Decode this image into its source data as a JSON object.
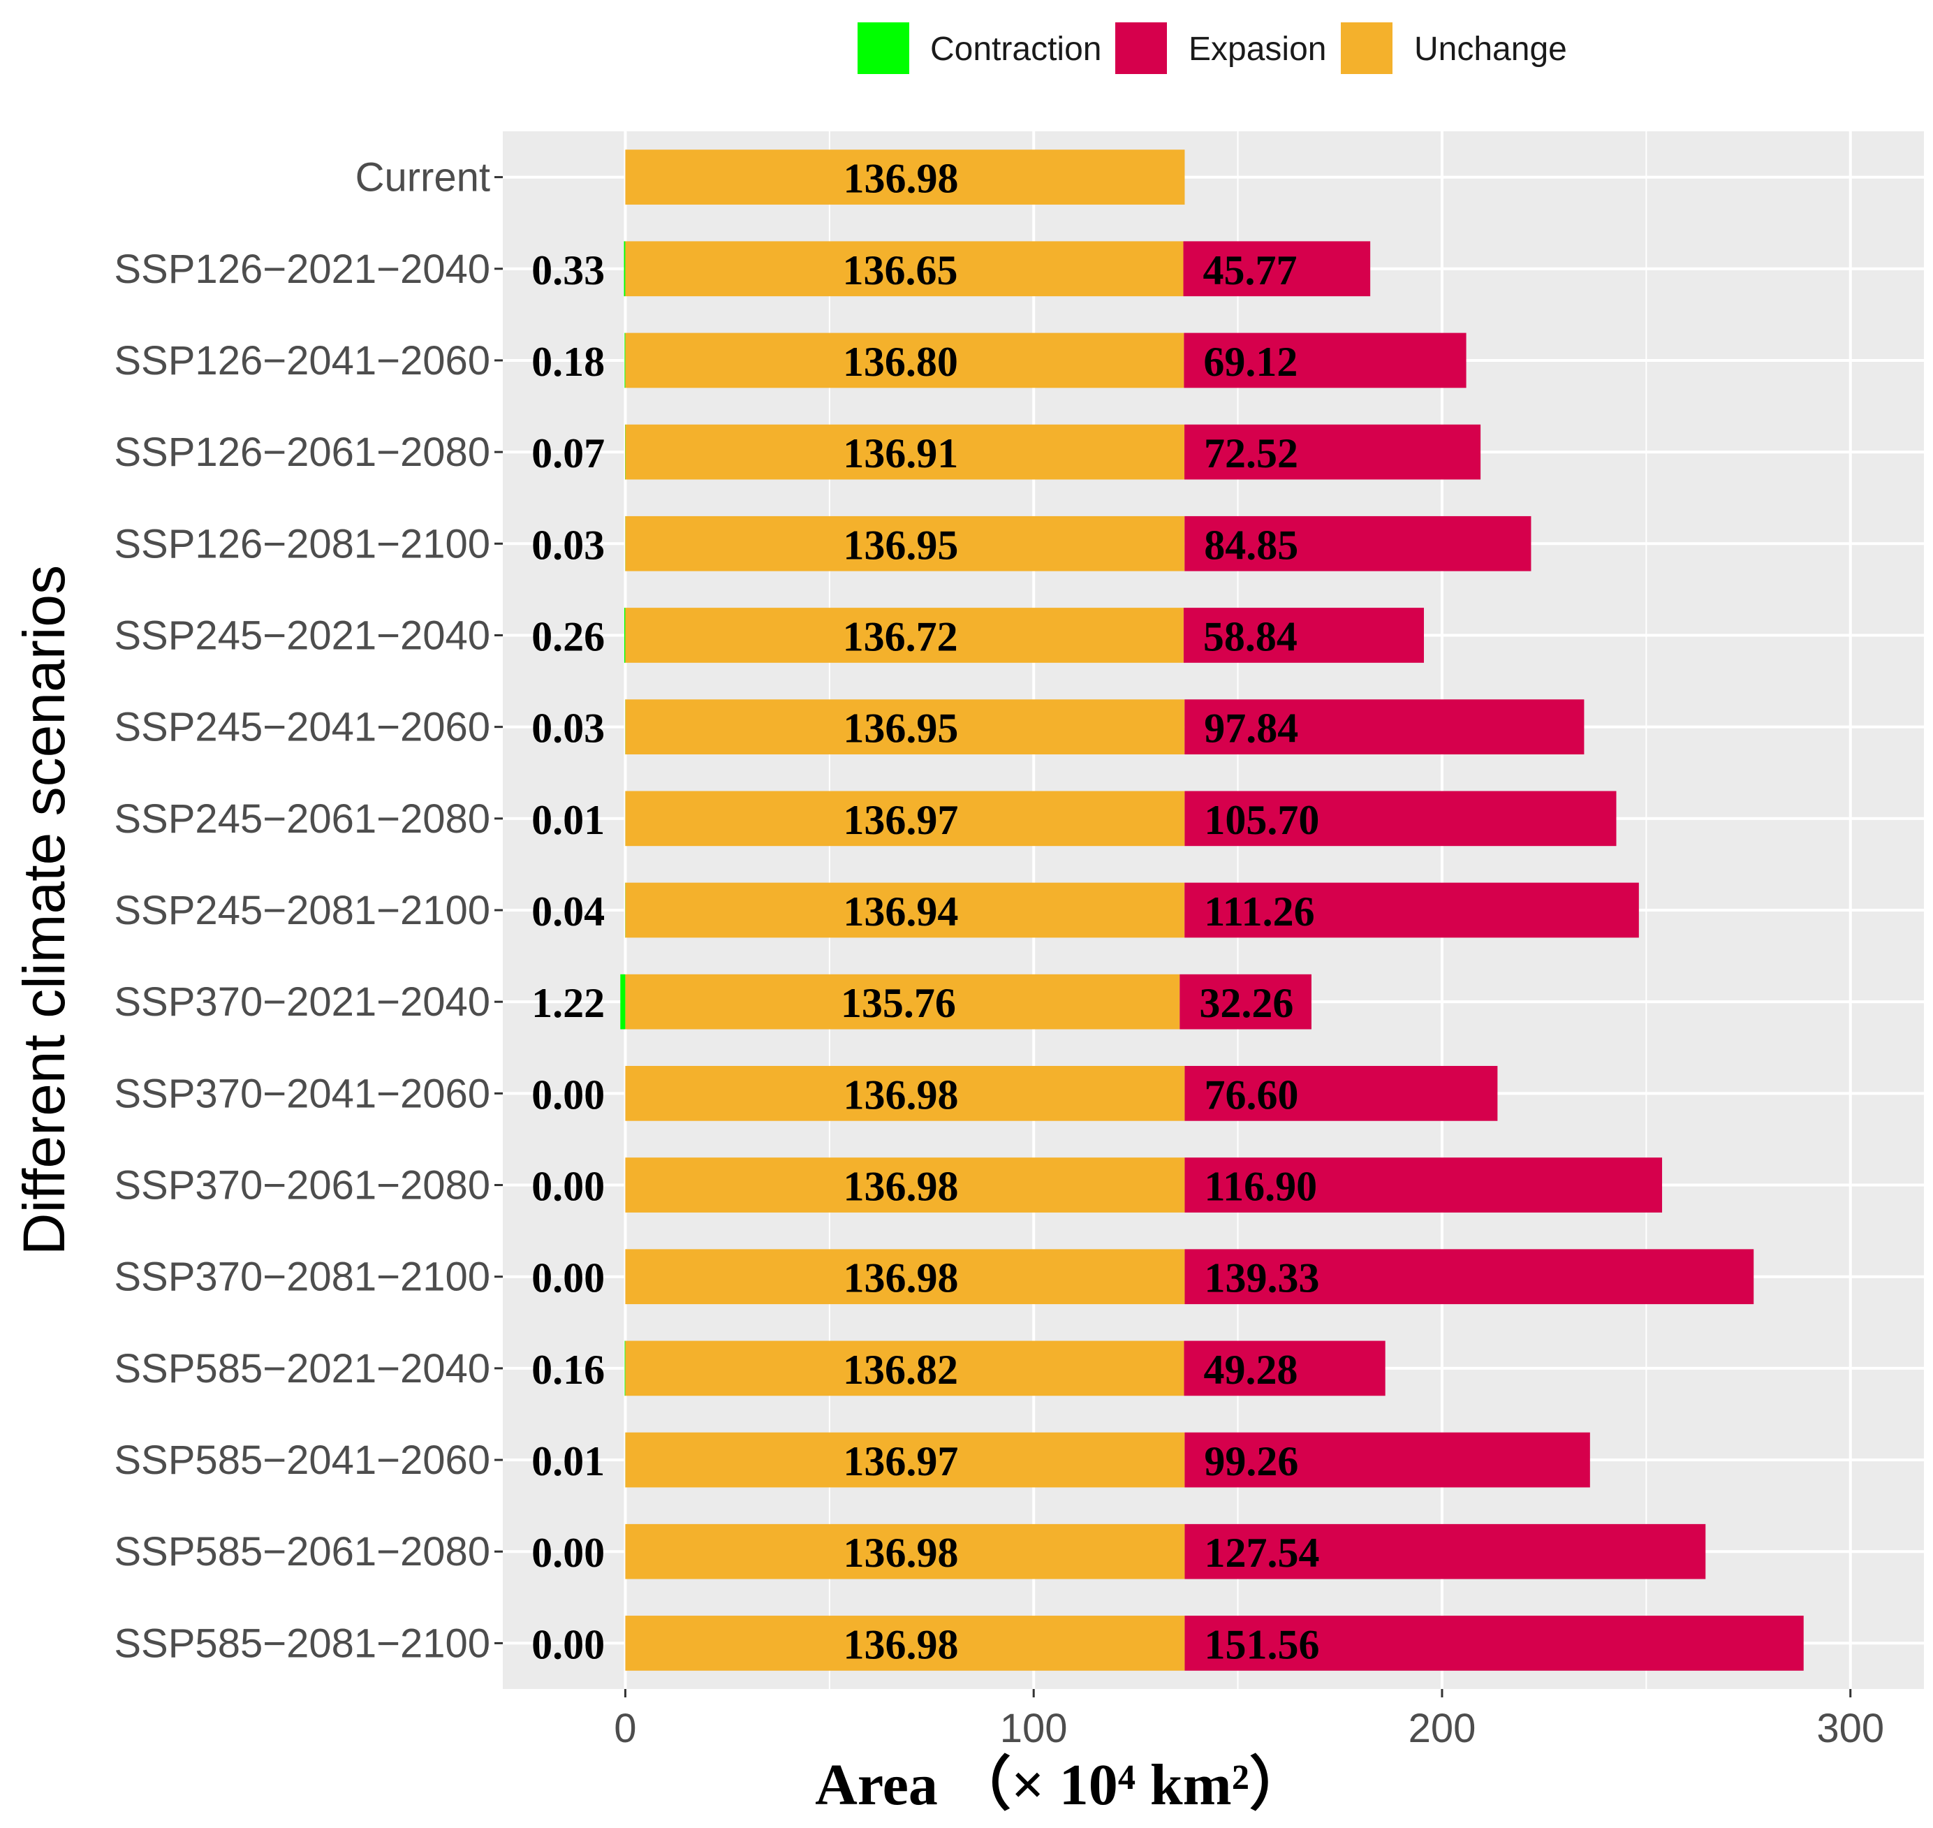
{
  "chart_data": {
    "type": "bar",
    "orientation": "horizontal",
    "stacked": true,
    "title": "",
    "xlabel": "Area （× 10⁴ km²）",
    "ylabel": "Different climate scenarios",
    "xlim": [
      -30,
      318
    ],
    "xticks": [
      0,
      100,
      200,
      300
    ],
    "grid": true,
    "legend_position": "top",
    "categories": [
      "Current",
      "SSP126−2021−2040",
      "SSP126−2041−2060",
      "SSP126−2061−2080",
      "SSP126−2081−2100",
      "SSP245−2021−2040",
      "SSP245−2041−2060",
      "SSP245−2061−2080",
      "SSP245−2081−2100",
      "SSP370−2021−2040",
      "SSP370−2041−2060",
      "SSP370−2061−2080",
      "SSP370−2081−2100",
      "SSP585−2021−2040",
      "SSP585−2041−2060",
      "SSP585−2061−2080",
      "SSP585−2081−2100"
    ],
    "series": [
      {
        "name": "Contraction",
        "color": "#00ff00",
        "values": [
          null,
          0.33,
          0.18,
          0.07,
          0.03,
          0.26,
          0.03,
          0.01,
          0.04,
          1.22,
          0.0,
          0.0,
          0.0,
          0.16,
          0.01,
          0.0,
          0.0
        ],
        "labels": [
          "",
          "0.33",
          "0.18",
          "0.07",
          "0.03",
          "0.26",
          "0.03",
          "0.01",
          "0.04",
          "1.22",
          "0.00",
          "0.00",
          "0.00",
          "0.16",
          "0.01",
          "0.00",
          "0.00"
        ]
      },
      {
        "name": "Expasion",
        "color": "#d6004c",
        "values": [
          null,
          45.77,
          69.12,
          72.52,
          84.85,
          58.84,
          97.84,
          105.7,
          111.26,
          32.26,
          76.6,
          116.9,
          139.33,
          49.28,
          99.26,
          127.54,
          151.56
        ],
        "labels": [
          "",
          "45.77",
          "69.12",
          "72.52",
          "84.85",
          "58.84",
          "97.84",
          "105.70",
          "111.26",
          "32.26",
          "76.60",
          "116.90",
          "139.33",
          "49.28",
          "99.26",
          "127.54",
          "151.56"
        ]
      },
      {
        "name": "Unchange",
        "color": "#f4b12c",
        "values": [
          136.98,
          136.65,
          136.8,
          136.91,
          136.95,
          136.72,
          136.95,
          136.97,
          136.94,
          135.76,
          136.98,
          136.98,
          136.98,
          136.82,
          136.97,
          136.98,
          136.98
        ],
        "labels": [
          "136.98",
          "136.65",
          "136.80",
          "136.91",
          "136.95",
          "136.72",
          "136.95",
          "136.97",
          "136.94",
          "135.76",
          "136.98",
          "136.98",
          "136.98",
          "136.82",
          "136.97",
          "136.98",
          "136.98"
        ]
      }
    ]
  }
}
